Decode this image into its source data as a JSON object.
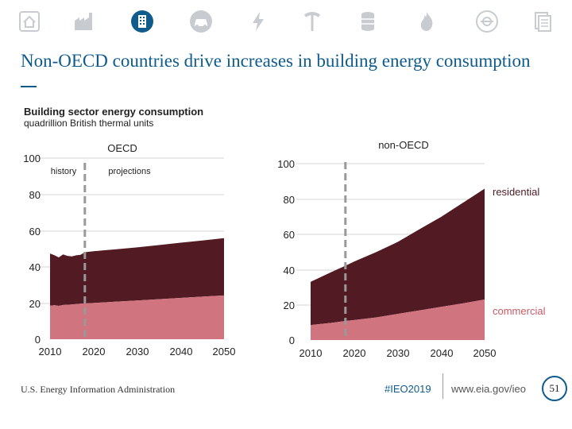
{
  "nav": {
    "tabs": [
      {
        "icon": "house-icon"
      },
      {
        "icon": "factory-icon"
      },
      {
        "icon": "building-icon",
        "active": true
      },
      {
        "icon": "car-icon"
      },
      {
        "icon": "lightning-icon"
      },
      {
        "icon": "pickaxe-icon"
      },
      {
        "icon": "barrel-icon"
      },
      {
        "icon": "flame-icon"
      },
      {
        "icon": "eia-logo-icon"
      },
      {
        "icon": "document-icon"
      }
    ]
  },
  "slide": {
    "title": "Non-OECD countries drive increases in building energy consumption",
    "subtitle": "Building sector energy consumption",
    "units": "quadrillion British thermal units"
  },
  "colors": {
    "residential": "#521a22",
    "commercial": "#d07580",
    "accent": "#0e5b8c",
    "icon_gray": "#c8ccd0"
  },
  "chart_data": [
    {
      "type": "area",
      "title": "OECD",
      "history_label": "history",
      "projection_label": "projections",
      "projection_start": 2018,
      "x": [
        2010,
        2011,
        2012,
        2013,
        2014,
        2015,
        2016,
        2017,
        2018,
        2020,
        2025,
        2030,
        2035,
        2040,
        2045,
        2050
      ],
      "series": [
        {
          "name": "commercial",
          "values": [
            18.5,
            18.8,
            18.4,
            18.9,
            19.0,
            19.2,
            19.4,
            19.6,
            19.8,
            20.0,
            20.7,
            21.4,
            22.1,
            22.8,
            23.5,
            24.2
          ]
        },
        {
          "name": "residential",
          "values": [
            28.8,
            27.6,
            26.8,
            27.9,
            27.0,
            26.5,
            26.9,
            27.0,
            28.2,
            28.6,
            28.9,
            29.3,
            29.9,
            30.5,
            31.0,
            31.6
          ]
        }
      ],
      "xticks": [
        "2010",
        "2020",
        "2030",
        "2040",
        "2050"
      ],
      "yticks": [
        "0",
        "20",
        "40",
        "60",
        "80",
        "100"
      ],
      "xlim": [
        2010,
        2050
      ],
      "ylim": [
        0,
        100
      ]
    },
    {
      "type": "area",
      "title": "non-OECD",
      "projection_start": 2018,
      "x": [
        2010,
        2015,
        2018,
        2020,
        2025,
        2030,
        2035,
        2040,
        2045,
        2050
      ],
      "series": [
        {
          "name": "commercial",
          "values": [
            8.5,
            9.8,
            10.8,
            11.3,
            12.8,
            14.8,
            16.8,
            18.8,
            20.8,
            23.0
          ]
        },
        {
          "name": "residential",
          "values": [
            24.5,
            29.0,
            31.3,
            33.2,
            37.0,
            40.8,
            46.0,
            51.0,
            57.0,
            62.8
          ]
        }
      ],
      "series_labels": {
        "residential": "residential",
        "commercial": "commercial"
      },
      "xticks": [
        "2010",
        "2020",
        "2030",
        "2040",
        "2050"
      ],
      "yticks": [
        "0",
        "20",
        "40",
        "60",
        "80",
        "100"
      ],
      "xlim": [
        2010,
        2050
      ],
      "ylim": [
        0,
        100
      ]
    }
  ],
  "footer": {
    "source": "U.S. Energy Information Administration",
    "hashtag": "#IEO2019",
    "url": "www.eia.gov/ieo",
    "page": "51"
  }
}
